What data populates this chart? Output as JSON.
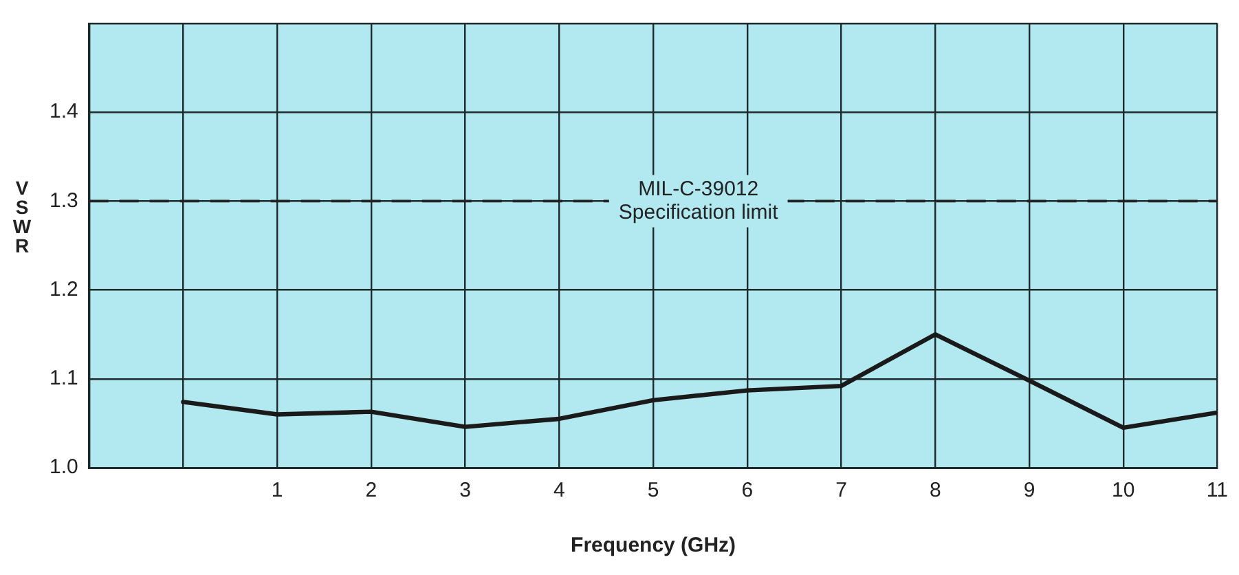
{
  "chart_data": {
    "type": "line",
    "xlabel": "Frequency (GHz)",
    "ylabel": "VSWR",
    "x": [
      0,
      1,
      2,
      3,
      4,
      5,
      6,
      7,
      8,
      9,
      10,
      11
    ],
    "series": [
      {
        "color": "#1a1a1a",
        "values": [
          1.074,
          1.06,
          1.063,
          1.046,
          1.055,
          1.076,
          1.087,
          1.092,
          1.15,
          1.098,
          1.045,
          1.062
        ]
      }
    ],
    "xlim": [
      -1,
      11
    ],
    "xticks": [
      {
        "value": -1,
        "label": null
      },
      {
        "value": 0,
        "label": null
      },
      1,
      2,
      3,
      4,
      5,
      6,
      7,
      8,
      9,
      10,
      11
    ],
    "ylim": [
      1,
      1.5
    ],
    "yticks": [
      {
        "value": 1,
        "label": "1.0"
      },
      1.1,
      1.2,
      1.3,
      1.4,
      {
        "value": 1.5,
        "label": null
      }
    ],
    "ref_lines": [
      {
        "axis": "y",
        "value": 1.3,
        "label": "MIL-C-39012\nSpecification limit",
        "line_style": "dashed",
        "color": "#222222"
      }
    ],
    "grid": true,
    "legend": false,
    "marker": "none",
    "line_style": "solid"
  }
}
